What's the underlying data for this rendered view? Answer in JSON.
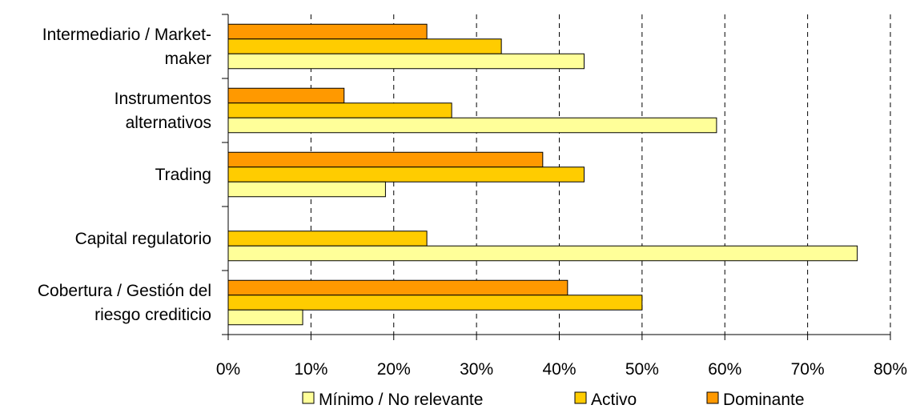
{
  "chart_data": {
    "type": "bar",
    "orientation": "horizontal",
    "categories": [
      "Intermediario / Market-maker",
      "Instrumentos alternativos",
      "Trading",
      "Capital regulatorio",
      "Cobertura / Gestión del riesgo crediticio"
    ],
    "category_label_lines": [
      [
        "Intermediario / Market-",
        "maker"
      ],
      [
        "Instrumentos",
        "alternativos"
      ],
      [
        "Trading"
      ],
      [
        "Capital regulatorio"
      ],
      [
        "Cobertura / Gestión del",
        "riesgo crediticio"
      ]
    ],
    "series": [
      {
        "name": "Mínimo / No relevante",
        "color": "#FFFF99",
        "values": [
          0.43,
          0.59,
          0.19,
          0.76,
          0.09
        ]
      },
      {
        "name": "Activo",
        "color": "#FFCC00",
        "values": [
          0.33,
          0.27,
          0.43,
          0.24,
          0.5
        ]
      },
      {
        "name": "Dominante",
        "color": "#FF9900",
        "values": [
          0.24,
          0.14,
          0.38,
          0.0,
          0.41
        ]
      }
    ],
    "xlim": [
      0,
      0.8
    ],
    "x_ticks": [
      "0%",
      "10%",
      "20%",
      "30%",
      "40%",
      "50%",
      "60%",
      "70%",
      "80%"
    ],
    "gridlines": "vertical dashed",
    "legend_position": "bottom",
    "title": "",
    "xlabel": "",
    "ylabel": ""
  }
}
